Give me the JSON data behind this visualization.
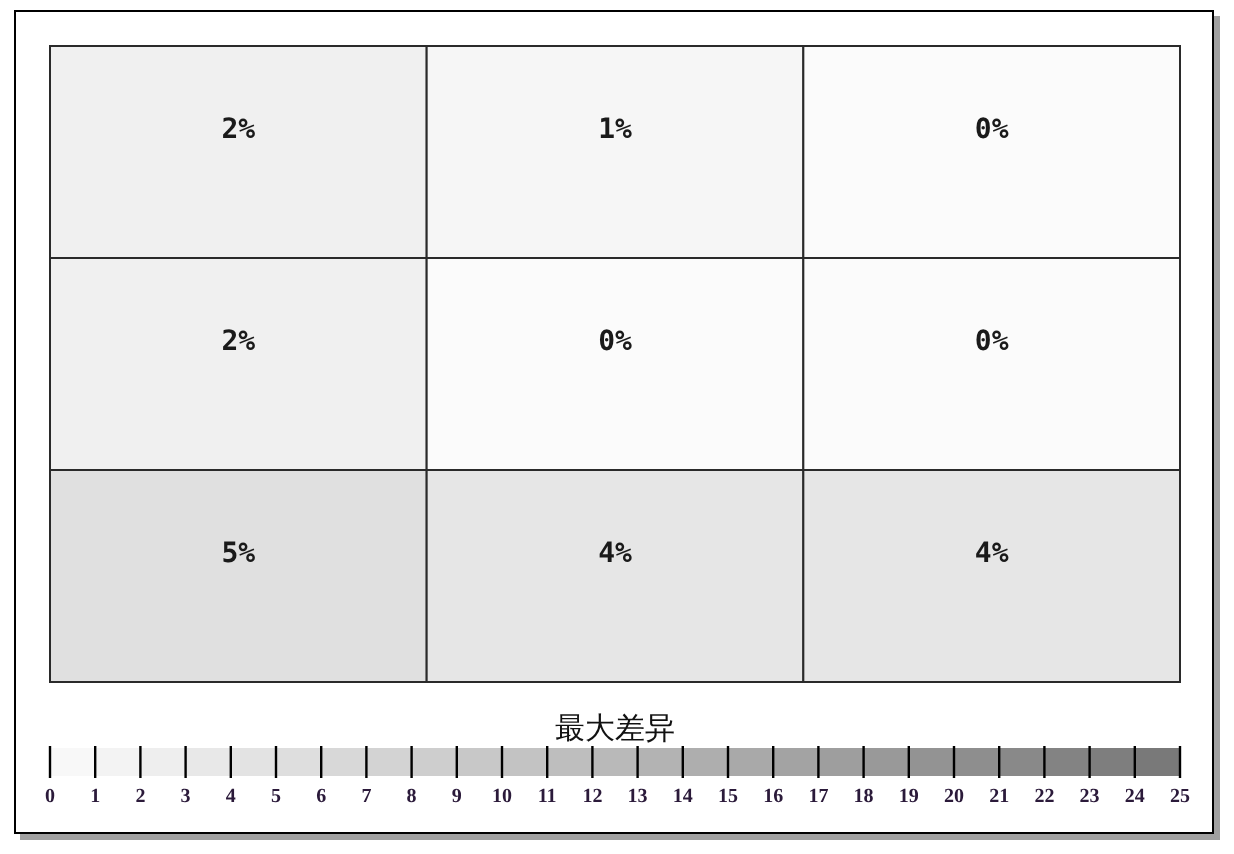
{
  "chart_data": {
    "type": "heatmap",
    "categories": [
      null,
      null,
      null
    ],
    "y_categories": [
      null,
      null,
      null
    ],
    "cells": [
      [
        2,
        1,
        0
      ],
      [
        2,
        0,
        0
      ],
      [
        5,
        4,
        4
      ]
    ],
    "cell_labels": [
      [
        "2%",
        "1%",
        "0%"
      ],
      [
        "2%",
        "0%",
        "0%"
      ],
      [
        "5%",
        "4%",
        "4%"
      ]
    ],
    "clabel": "最大差异",
    "clim": [
      0,
      25
    ],
    "cticks": [
      0,
      1,
      2,
      3,
      4,
      5,
      6,
      7,
      8,
      9,
      10,
      11,
      12,
      13,
      14,
      15,
      16,
      17,
      18,
      19,
      20,
      21,
      22,
      23,
      24,
      25
    ]
  }
}
